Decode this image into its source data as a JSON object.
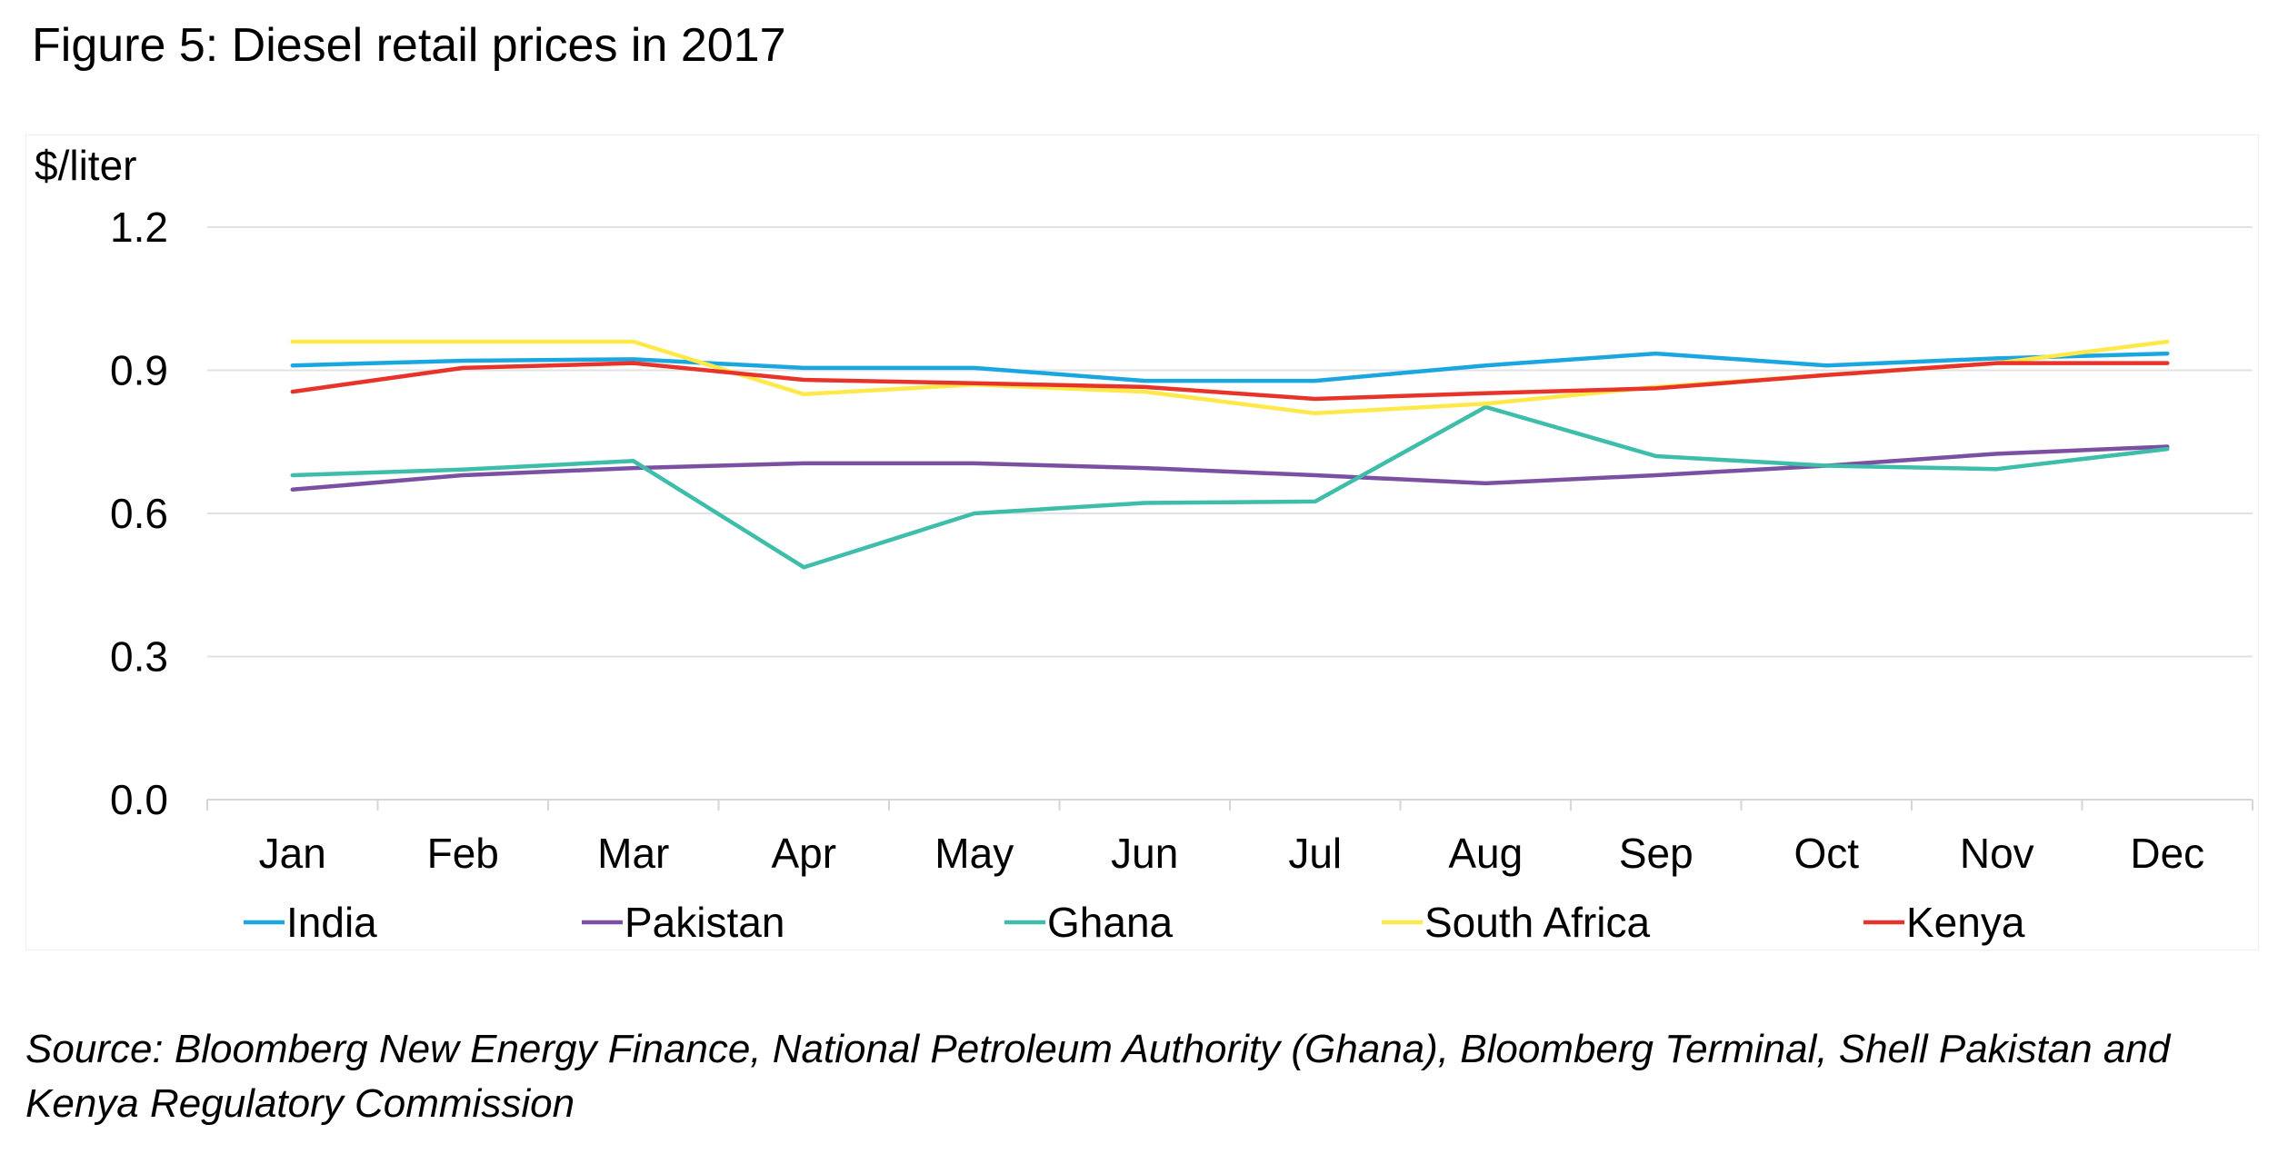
{
  "figure": {
    "title": "Figure 5: Diesel retail prices in 2017",
    "source": "Source: Bloomberg New Energy Finance, National Petroleum Authority (Ghana), Bloomberg Terminal, Shell Pakistan and Kenya Regulatory Commission"
  },
  "chart_data": {
    "type": "line",
    "title": "",
    "ylabel": "$/liter",
    "xlabel": "",
    "categories": [
      "Jan",
      "Feb",
      "Mar",
      "Apr",
      "May",
      "Jun",
      "Jul",
      "Aug",
      "Sep",
      "Oct",
      "Nov",
      "Dec"
    ],
    "ylim": [
      0,
      1.2
    ],
    "yticks": [
      "0.0",
      "0.3",
      "0.6",
      "0.9",
      "1.2"
    ],
    "grid": true,
    "legend_position": "bottom",
    "series": [
      {
        "name": "India",
        "color": "#1AA7DF",
        "values": [
          0.91,
          0.92,
          0.923,
          0.905,
          0.905,
          0.878,
          0.878,
          0.91,
          0.935,
          0.91,
          0.925,
          0.935
        ]
      },
      {
        "name": "Pakistan",
        "color": "#7B4FA2",
        "values": [
          0.65,
          0.68,
          0.695,
          0.705,
          0.705,
          0.695,
          0.68,
          0.663,
          0.68,
          0.7,
          0.725,
          0.74
        ]
      },
      {
        "name": "Ghana",
        "color": "#3DBDAA",
        "values": [
          0.68,
          0.692,
          0.71,
          0.487,
          0.6,
          0.622,
          0.625,
          0.823,
          0.72,
          0.7,
          0.693,
          0.735
        ]
      },
      {
        "name": "South Africa",
        "color": "#FFE94A",
        "values": [
          0.96,
          0.96,
          0.96,
          0.85,
          0.87,
          0.855,
          0.81,
          0.83,
          0.865,
          0.89,
          0.915,
          0.96
        ]
      },
      {
        "name": "Kenya",
        "color": "#E8332A",
        "values": [
          0.855,
          0.905,
          0.915,
          0.88,
          0.873,
          0.865,
          0.84,
          0.852,
          0.862,
          0.89,
          0.915,
          0.915
        ]
      }
    ]
  }
}
